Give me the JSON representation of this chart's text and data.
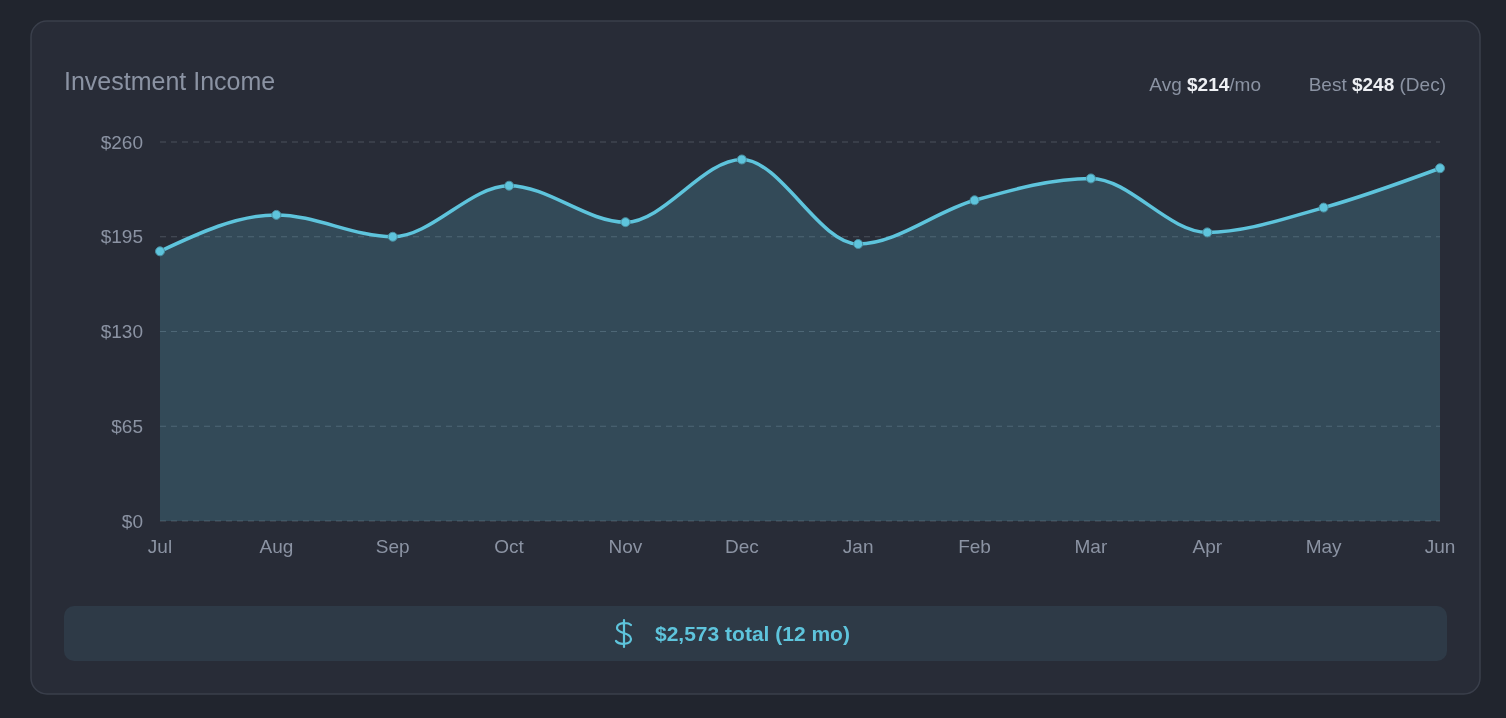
{
  "chart_data": {
    "type": "area",
    "title": "Investment Income",
    "categories": [
      "Jul",
      "Aug",
      "Sep",
      "Oct",
      "Nov",
      "Dec",
      "Jan",
      "Feb",
      "Mar",
      "Apr",
      "May",
      "Jun"
    ],
    "series": [
      {
        "color": "#5ec4dc",
        "values": [
          185,
          210,
          195,
          230,
          205,
          248,
          190,
          220,
          235,
          198,
          215,
          242
        ]
      }
    ],
    "ylim": [
      0,
      260
    ],
    "yticks": [
      {
        "value": 0,
        "label": "$0"
      },
      {
        "value": 65,
        "label": "$65"
      },
      {
        "value": 130,
        "label": "$130"
      },
      {
        "value": 195,
        "label": "$195"
      },
      {
        "value": 260,
        "label": "$260"
      }
    ],
    "grid": "y",
    "line_style": "solid",
    "marker": "circle",
    "annotations": [
      "Avg $214/mo",
      "Best $248 (Dec)",
      "$2,573 total (12 mo)"
    ]
  }
}
